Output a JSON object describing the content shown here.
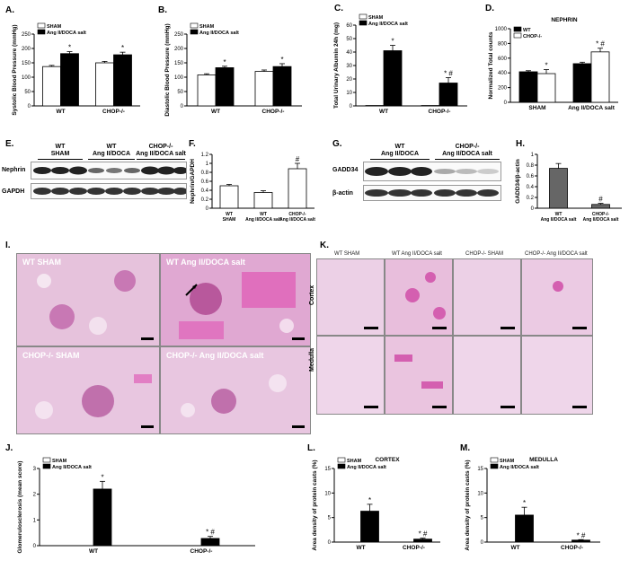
{
  "panels": {
    "A": "A.",
    "B": "B.",
    "C": "C.",
    "D": "D.",
    "E": "E.",
    "F": "F.",
    "G": "G.",
    "H": "H.",
    "I": "I.",
    "K": "K.",
    "J": "J.",
    "L": "L.",
    "M": "M."
  },
  "colors": {
    "black": "#000000",
    "white": "#ffffff",
    "histo_bg": "#e8c6e0",
    "histo_pink": "#d45fb0"
  },
  "blot_E": {
    "groups": [
      "WT\nSHAM",
      "WT\nAng II/DOCA",
      "CHOP-/-\nAng II/DOCA salt"
    ],
    "rows": [
      "Nephrin",
      "GAPDH"
    ]
  },
  "blot_G": {
    "groups": [
      "WT\nAng II/DOCA",
      "CHOP-/-\nAng II/DOCA salt"
    ],
    "rows": [
      "GADD34",
      "β-actin"
    ]
  },
  "histo_I": {
    "panels": [
      "WT SHAM",
      "WT Ang II/DOCA salt",
      "CHOP-/- SHAM",
      "CHOP-/- Ang II/DOCA salt"
    ]
  },
  "histo_K": {
    "columns": [
      "WT SHAM",
      "WT Ang II/DOCA salt",
      "CHOP-/- SHAM",
      "CHOP-/- Ang II/DOCA salt"
    ],
    "rows": [
      "Cortex",
      "Medulla"
    ]
  },
  "chart_data": [
    {
      "id": "A",
      "type": "bar",
      "categories": [
        "WT",
        "CHOP-/-"
      ],
      "ylabel": "Systolic Blood Pressure (mmHg)",
      "ylim": [
        0,
        250
      ],
      "yticks": [
        0,
        50,
        100,
        150,
        200,
        250
      ],
      "legend": "top-left",
      "series": [
        {
          "name": "SHAM",
          "values": [
            137,
            150
          ],
          "err": [
            4,
            5
          ],
          "fill": "#ffffff"
        },
        {
          "name": "Ang II/DOCA salt",
          "values": [
            182,
            178
          ],
          "err": [
            7,
            9
          ],
          "fill": "#000000"
        }
      ],
      "annotations": [
        "*",
        "*"
      ]
    },
    {
      "id": "B",
      "type": "bar",
      "categories": [
        "WT",
        "CHOP-/-"
      ],
      "ylabel": "Diastolic Blood Pressure (mmHg)",
      "ylim": [
        0,
        250
      ],
      "yticks": [
        0,
        50,
        100,
        150,
        200,
        250
      ],
      "legend": "top-left",
      "series": [
        {
          "name": "SHAM",
          "values": [
            108,
            120
          ],
          "err": [
            4,
            5
          ],
          "fill": "#ffffff"
        },
        {
          "name": "Ang II/DOCA salt",
          "values": [
            133,
            137
          ],
          "err": [
            5,
            10
          ],
          "fill": "#000000"
        }
      ],
      "annotations": [
        "*",
        "*"
      ]
    },
    {
      "id": "C",
      "type": "bar",
      "categories": [
        "WT",
        "CHOP-/-"
      ],
      "ylabel": "Total Urinary Albumin 24h (mg)",
      "ylim": [
        0,
        60
      ],
      "yticks": [
        0,
        10,
        20,
        30,
        40,
        50,
        60
      ],
      "legend": "top-left",
      "series": [
        {
          "name": "SHAM",
          "values": [
            0.3,
            0.3
          ],
          "err": [
            0,
            0
          ],
          "fill": "#ffffff"
        },
        {
          "name": "Ang II/DOCA salt",
          "values": [
            41,
            17
          ],
          "err": [
            4,
            4
          ],
          "fill": "#000000"
        }
      ],
      "annotations": [
        "*",
        "* #"
      ]
    },
    {
      "id": "D",
      "type": "bar",
      "categories": [
        "SHAM",
        "Ang II/DOCA salt"
      ],
      "title": "NEPHRIN",
      "ylabel": "Normalized Total counts",
      "ylim": [
        0,
        1000
      ],
      "yticks": [
        0,
        200,
        400,
        600,
        800,
        1000
      ],
      "legend": "top-left",
      "series": [
        {
          "name": "WT",
          "values": [
            415,
            525
          ],
          "err": [
            15,
            20
          ],
          "fill": "#000000"
        },
        {
          "name": "CHOP-/-",
          "values": [
            390,
            685
          ],
          "err": [
            55,
            50
          ],
          "fill": "#ffffff"
        }
      ],
      "annotations": [
        "*",
        "* #"
      ]
    },
    {
      "id": "F",
      "type": "bar",
      "categories": [
        "WT\nSHAM",
        "WT\nAng II/DOCA salt",
        "CHOP-/-\nAng II/DOCA salt"
      ],
      "ylabel": "Nephrin/GAPDH",
      "ylim": [
        0,
        1.2
      ],
      "yticks": [
        0,
        0.2,
        0.4,
        0.6,
        0.8,
        1.0,
        1.2
      ],
      "series": [
        {
          "values": [
            0.5,
            0.35,
            0.88
          ],
          "err": [
            0.03,
            0.04,
            0.12
          ],
          "fill": "#ffffff"
        }
      ],
      "annotations": [
        "",
        "",
        "#"
      ]
    },
    {
      "id": "H",
      "type": "bar",
      "categories": [
        "WT\nAng II/DOCA salt",
        "CHOP-/-\nAng II/DOCA salt"
      ],
      "ylabel": "GADD34/β-actin",
      "ylim": [
        0,
        1.0
      ],
      "yticks": [
        0,
        0.2,
        0.4,
        0.6,
        0.8,
        1.0
      ],
      "series": [
        {
          "values": [
            0.74,
            0.07
          ],
          "err": [
            0.09,
            0.02
          ],
          "fill": "#666666"
        }
      ],
      "annotations": [
        "",
        "#"
      ]
    },
    {
      "id": "J",
      "type": "bar",
      "categories": [
        "WT",
        "CHOP-/-"
      ],
      "ylabel": "Glomerulosclerosis (mean score)",
      "ylim": [
        0,
        3
      ],
      "yticks": [
        0,
        1,
        2,
        3
      ],
      "legend": "top-left",
      "series": [
        {
          "name": "SHAM",
          "values": [
            0,
            0
          ],
          "err": [
            0,
            0
          ],
          "fill": "#ffffff"
        },
        {
          "name": "Ang II/DOCA salt",
          "values": [
            2.2,
            0.28
          ],
          "err": [
            0.3,
            0.08
          ],
          "fill": "#000000"
        }
      ],
      "annotations": [
        "*",
        "* #"
      ]
    },
    {
      "id": "L",
      "type": "bar",
      "categories": [
        "WT",
        "CHOP-/-"
      ],
      "title": "CORTEX",
      "ylabel": "Area density of protein casts (%)",
      "ylim": [
        0,
        15
      ],
      "yticks": [
        0,
        5,
        10,
        15
      ],
      "legend": "top-left",
      "series": [
        {
          "name": "SHAM",
          "values": [
            0,
            0
          ],
          "err": [
            0,
            0
          ],
          "fill": "#ffffff"
        },
        {
          "name": "Ang II/DOCA salt",
          "values": [
            6.3,
            0.6
          ],
          "err": [
            1.4,
            0.2
          ],
          "fill": "#000000"
        }
      ],
      "annotations": [
        "*",
        "* #"
      ]
    },
    {
      "id": "M",
      "type": "bar",
      "categories": [
        "WT",
        "CHOP-/-"
      ],
      "title": "MEDULLA",
      "ylabel": "Area density of protein casts (%)",
      "ylim": [
        0,
        15
      ],
      "yticks": [
        0,
        5,
        10,
        15
      ],
      "legend": "top-left",
      "series": [
        {
          "name": "SHAM",
          "values": [
            0,
            0
          ],
          "err": [
            0,
            0
          ],
          "fill": "#ffffff"
        },
        {
          "name": "Ang II/DOCA salt",
          "values": [
            5.5,
            0.4
          ],
          "err": [
            1.6,
            0.1
          ],
          "fill": "#000000"
        }
      ],
      "annotations": [
        "*",
        "* #"
      ]
    }
  ]
}
